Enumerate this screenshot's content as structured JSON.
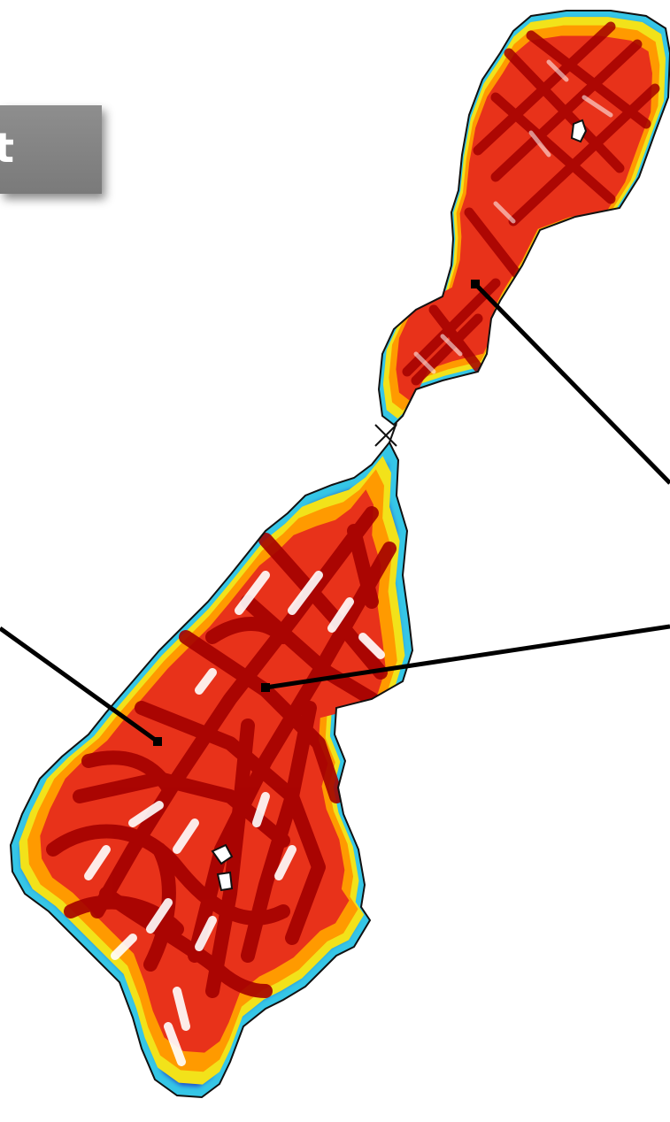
{
  "label": {
    "text": "t"
  },
  "colors": {
    "background": "#ffffff",
    "outline": "#111111",
    "box": "#858585",
    "label_text": "#ffffff",
    "heat_high": "#a30000",
    "heat_mid": "#e8321a",
    "heat_low": "#ff9a00",
    "edge_yellow": "#f2e21a",
    "edge_cyan": "#36c6e6",
    "edge_blue": "#1a3cc8",
    "pointer": "#000000"
  },
  "icons": {
    "junction_marker": "x-mark-icon",
    "pointer_end": "square-dot-icon"
  }
}
